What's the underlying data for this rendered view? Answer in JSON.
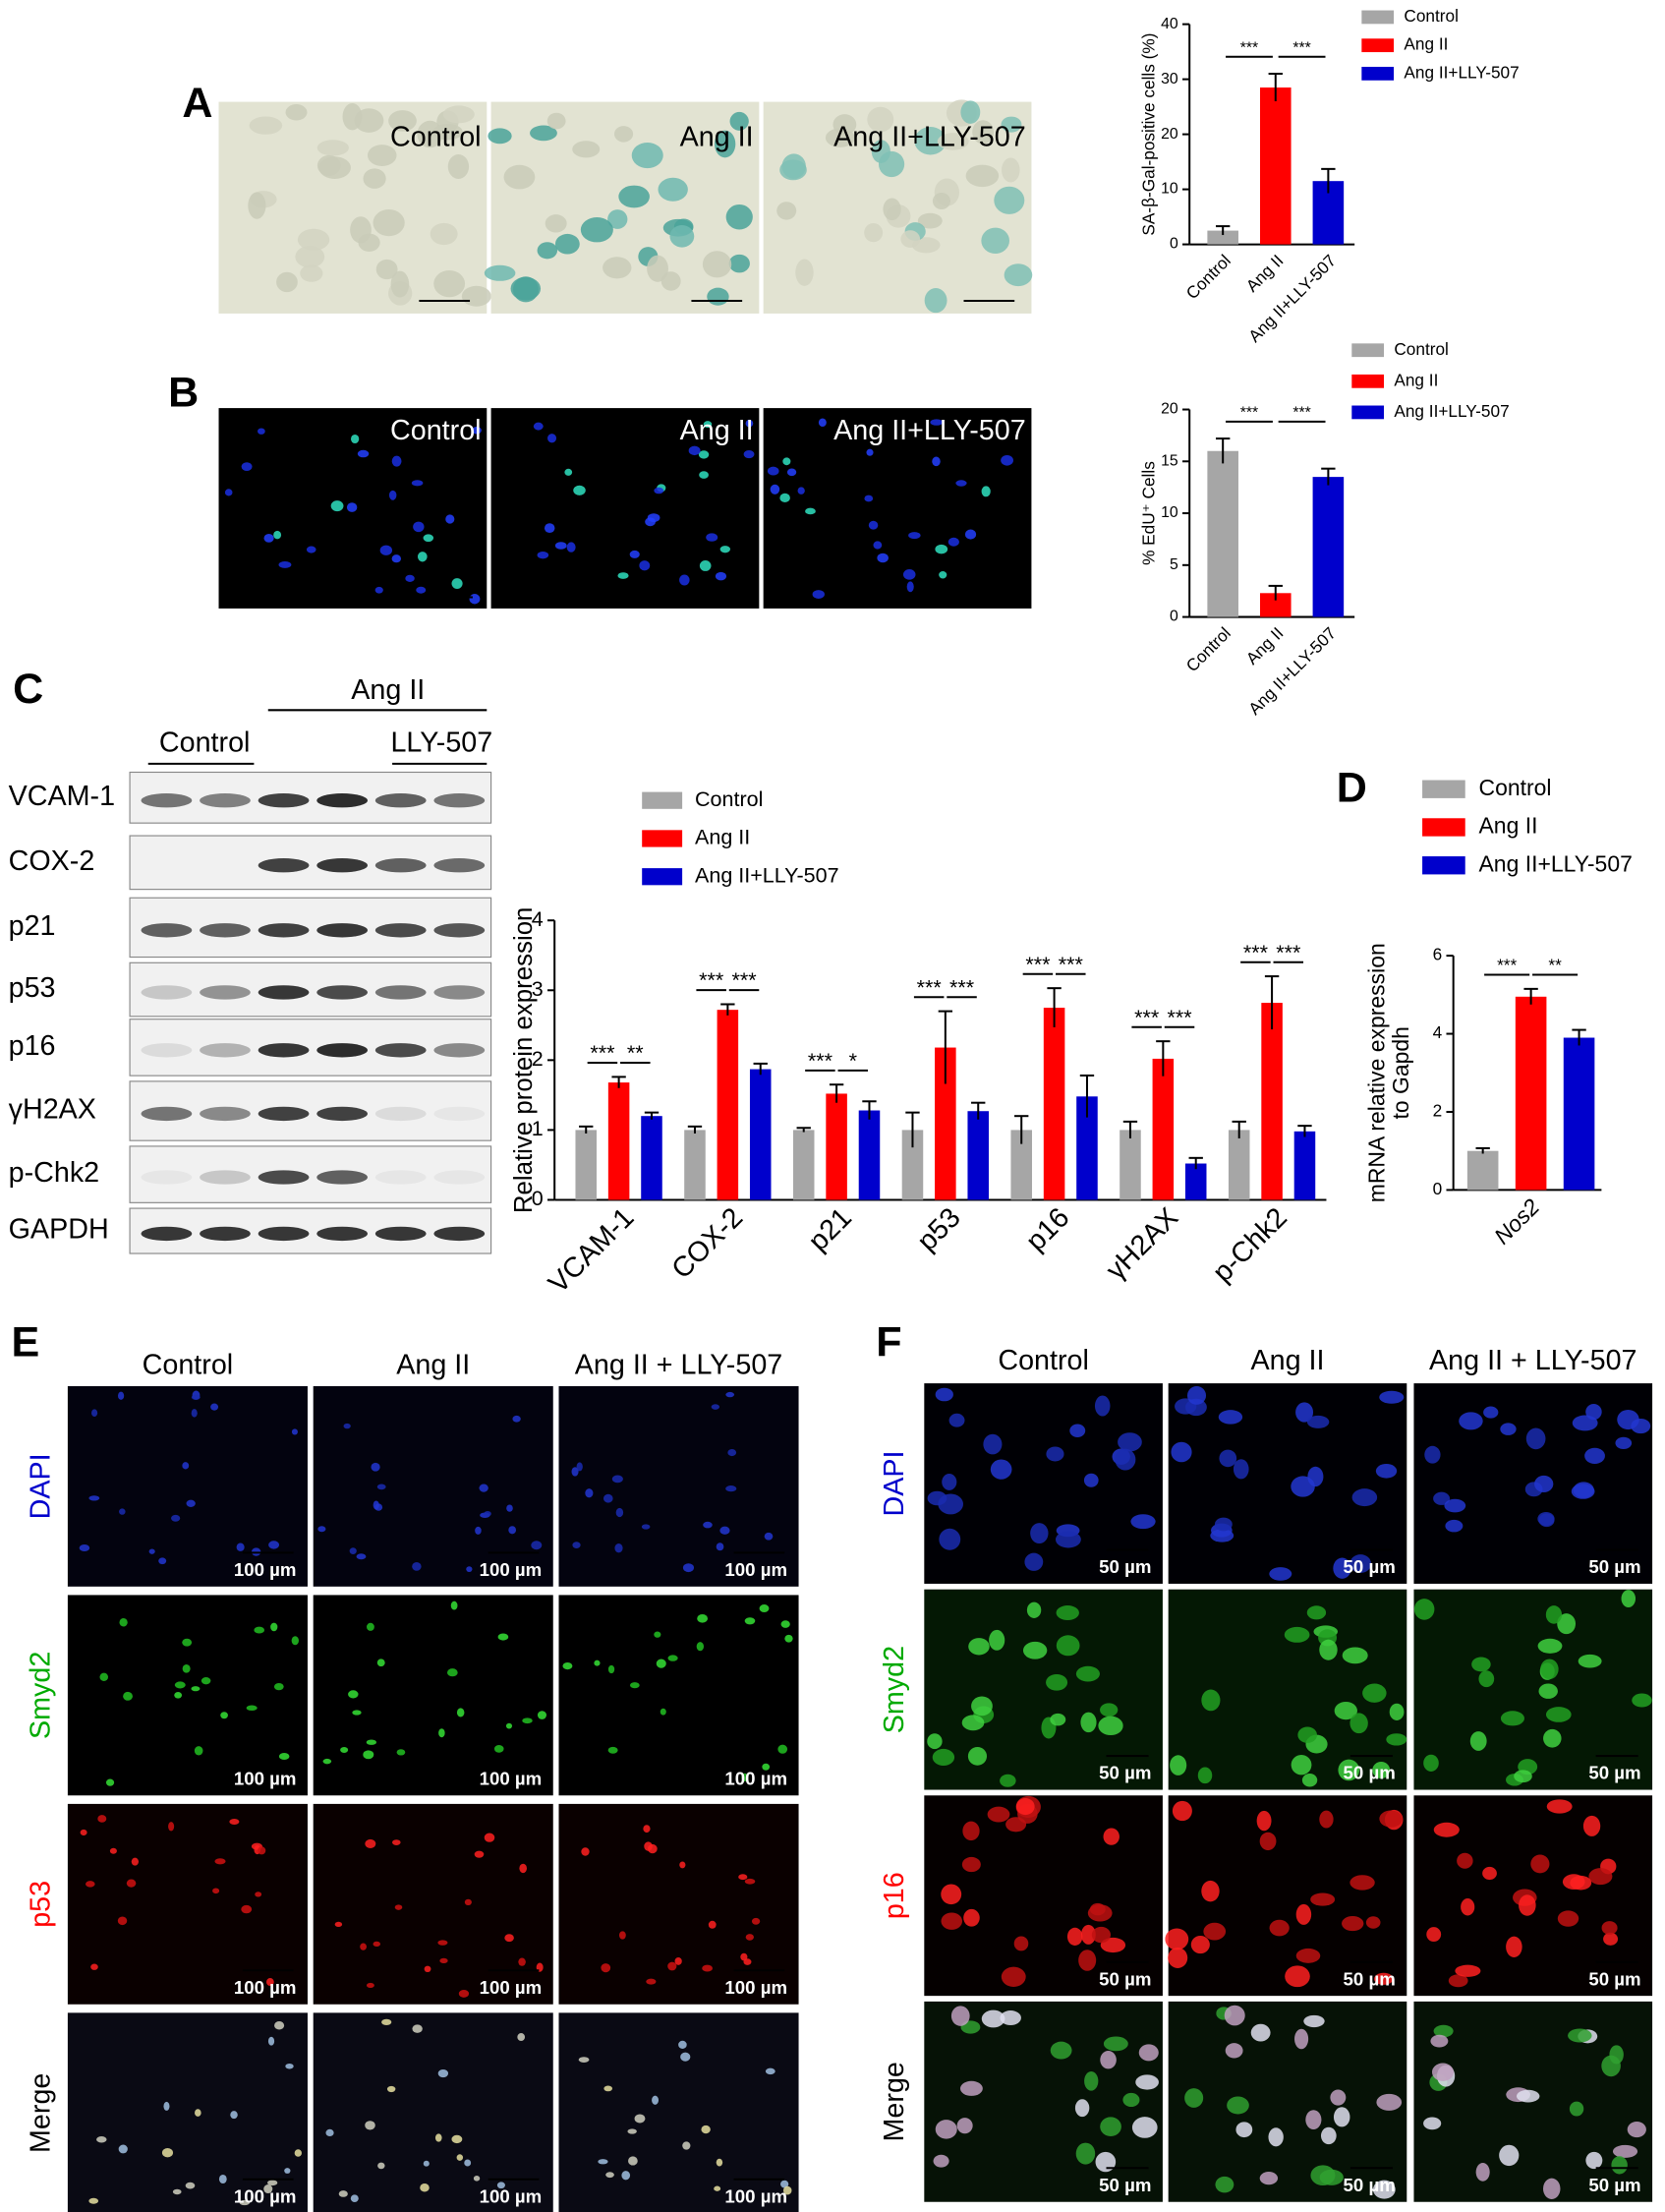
{
  "panel_letters": [
    "A",
    "B",
    "C",
    "D",
    "E",
    "F"
  ],
  "panel_a_images": [
    "Control",
    "Ang II",
    "Ang II+LLY-507"
  ],
  "panel_b_images": [
    "Control",
    "Ang II",
    "Ang II+LLY-507"
  ],
  "blot": {
    "groups": [
      "Ang II",
      "Control",
      "LLY-507"
    ],
    "proteins": [
      "VCAM-1",
      "COX-2",
      "p21",
      "p53",
      "p16",
      "γH2AX",
      "p-Chk2",
      "GAPDH"
    ]
  },
  "panel_e": {
    "columns": [
      "Control",
      "Ang II",
      "Ang II + LLY-507"
    ],
    "rows": [
      "DAPI",
      "Smyd2",
      "p53",
      "Merge"
    ],
    "scale_bar": "100 µm"
  },
  "panel_f": {
    "columns": [
      "Control",
      "Ang II",
      "Ang II + LLY-507"
    ],
    "rows": [
      "DAPI",
      "Smyd2",
      "p16",
      "Merge"
    ],
    "scale_bar": "50 µm"
  },
  "chart_data": [
    {
      "type": "bar",
      "ylabel": [
        "SA-β-Gal-positive cells (%)"
      ],
      "categories": [
        "Control",
        "Ang II",
        "Ang II+LLY-507"
      ],
      "series": [
        {
          "name": "Control",
          "color": "#a6a6a6",
          "values": [
            2.5,
            null,
            null
          ],
          "errors": [
            0.8,
            null,
            null
          ]
        },
        {
          "name": "Ang II",
          "color": "#ff0000",
          "values": [
            null,
            28.5,
            null
          ],
          "errors": [
            null,
            2.5,
            null
          ]
        },
        {
          "name": "Ang II+LLY-507",
          "color": "#0000cc",
          "values": [
            null,
            null,
            11.5
          ],
          "errors": [
            null,
            null,
            2.2
          ]
        }
      ],
      "ylim": [
        0,
        40
      ],
      "yticks": [
        0,
        10,
        20,
        30,
        40
      ],
      "significance": [
        "***",
        "***"
      ]
    },
    {
      "type": "bar",
      "ylabel": [
        "% EdU⁺ Cells"
      ],
      "categories": [
        "Control",
        "Ang II",
        "Ang II+LLY-507"
      ],
      "series": [
        {
          "name": "Control",
          "color": "#a6a6a6",
          "values": [
            16,
            null,
            null
          ],
          "errors": [
            1.2,
            null,
            null
          ]
        },
        {
          "name": "Ang II",
          "color": "#ff0000",
          "values": [
            null,
            2.3,
            null
          ],
          "errors": [
            null,
            0.7,
            null
          ]
        },
        {
          "name": "Ang II+LLY-507",
          "color": "#0000cc",
          "values": [
            null,
            null,
            13.5
          ],
          "errors": [
            null,
            null,
            0.8
          ]
        }
      ],
      "ylim": [
        0,
        20
      ],
      "yticks": [
        0,
        5,
        10,
        15,
        20
      ],
      "significance": [
        "***",
        "***"
      ]
    },
    {
      "type": "bar",
      "ylabel": [
        "Relative protein expression"
      ],
      "categories": [
        "VCAM-1",
        "COX-2",
        "p21",
        "p53",
        "p16",
        "γH2AX",
        "p-Chk2"
      ],
      "series": [
        {
          "name": "Control",
          "color": "#a6a6a6",
          "values": [
            1,
            1,
            1,
            1,
            1,
            1,
            1
          ],
          "errors": [
            0.05,
            0.05,
            0.03,
            0.25,
            0.2,
            0.12,
            0.12
          ]
        },
        {
          "name": "Ang II",
          "color": "#ff0000",
          "values": [
            1.68,
            2.72,
            1.52,
            2.18,
            2.75,
            2.02,
            2.82
          ],
          "errors": [
            0.08,
            0.08,
            0.13,
            0.52,
            0.28,
            0.25,
            0.38
          ]
        },
        {
          "name": "Ang II+LLY-507",
          "color": "#0000cc",
          "values": [
            1.2,
            1.87,
            1.28,
            1.27,
            1.48,
            0.52,
            0.98
          ],
          "errors": [
            0.05,
            0.08,
            0.13,
            0.12,
            0.3,
            0.08,
            0.08
          ]
        }
      ],
      "ylim": [
        0,
        4
      ],
      "yticks": [
        0,
        1,
        2,
        3,
        4
      ],
      "significance": [
        [
          "***",
          "**"
        ],
        [
          "***",
          "***"
        ],
        [
          "***",
          "*"
        ],
        [
          "***",
          "***"
        ],
        [
          "***",
          "***"
        ],
        [
          "***",
          "***"
        ],
        [
          "***",
          "***"
        ]
      ]
    },
    {
      "type": "bar",
      "ylabel": [
        "mRNA relative  expression",
        "to Gapdh"
      ],
      "categories": [
        "Nos2"
      ],
      "series": [
        {
          "name": "Control",
          "color": "#a6a6a6",
          "values": [
            1
          ],
          "errors": [
            0.07
          ]
        },
        {
          "name": "Ang II",
          "color": "#ff0000",
          "values": [
            4.95
          ],
          "errors": [
            0.2
          ]
        },
        {
          "name": "Ang II+LLY-507",
          "color": "#0000cc",
          "values": [
            3.9
          ],
          "errors": [
            0.2
          ]
        }
      ],
      "ylim": [
        0,
        6
      ],
      "yticks": [
        0,
        2,
        4,
        6
      ],
      "significance": [
        [
          "***",
          "**"
        ]
      ]
    }
  ]
}
